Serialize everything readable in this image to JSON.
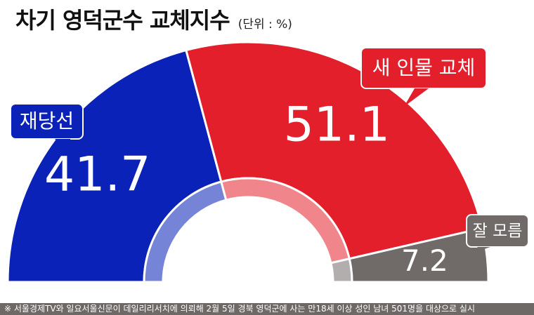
{
  "header": {
    "title": "차기 영덕군수 교체지수",
    "unit": "(단위 : %)"
  },
  "chart_data": {
    "type": "pie",
    "variant": "semicircle-donut",
    "title": "차기 영덕군수 교체지수",
    "unit": "%",
    "series": [
      {
        "name": "재당선",
        "value": 41.7,
        "value_label": "41.7",
        "color": "#0a22b8",
        "inner_color": "#7584d6",
        "callout_color": "#0a22b8"
      },
      {
        "name": "새 인물 교체",
        "value": 51.1,
        "value_label": "51.1",
        "color": "#e31f2b",
        "inner_color": "#f0868c",
        "callout_color": "#e31f2b"
      },
      {
        "name": "잘 모름",
        "value": 7.2,
        "value_label": "7.2",
        "color": "#706a69",
        "inner_color": "#b2aeae",
        "callout_color": "#706a69"
      }
    ]
  },
  "footer": {
    "note": "※ 서울경제TV와 일요서울신문이 데일리리서치에 의뢰해 2월 5일 경북 영덕군에 사는 만18세 이상 성인 남녀 501명을 대상으로 실시"
  }
}
